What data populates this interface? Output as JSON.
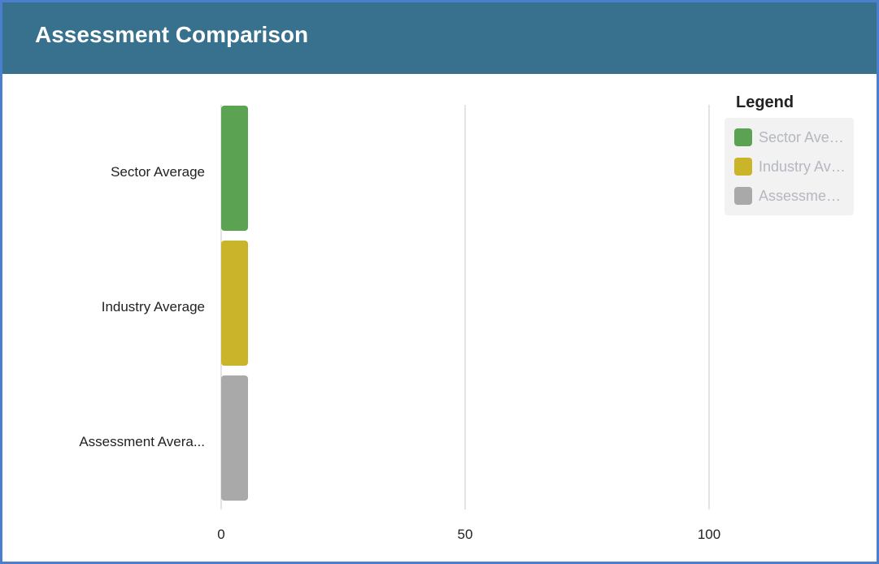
{
  "header": {
    "title": "Assessment Comparison"
  },
  "legend": {
    "title": "Legend",
    "items": [
      {
        "label": "Sector Average",
        "display": "Sector Aver…",
        "color": "#5ba353"
      },
      {
        "label": "Industry Average",
        "display": "Industry Av…",
        "color": "#c9b42a"
      },
      {
        "label": "Assessment Average",
        "display": "Assessme…",
        "color": "#a9a9a9"
      }
    ]
  },
  "chart_data": {
    "type": "bar",
    "orientation": "horizontal",
    "categories": [
      "Sector Average",
      "Industry Average",
      "Assessment Avera..."
    ],
    "values": [
      5.5,
      5.5,
      5.5
    ],
    "colors": [
      "#5ba353",
      "#c9b42a",
      "#a9a9a9"
    ],
    "xlim": [
      0,
      100
    ],
    "xticks": [
      0,
      50,
      100
    ],
    "grid": true,
    "legend_position": "top-right"
  }
}
